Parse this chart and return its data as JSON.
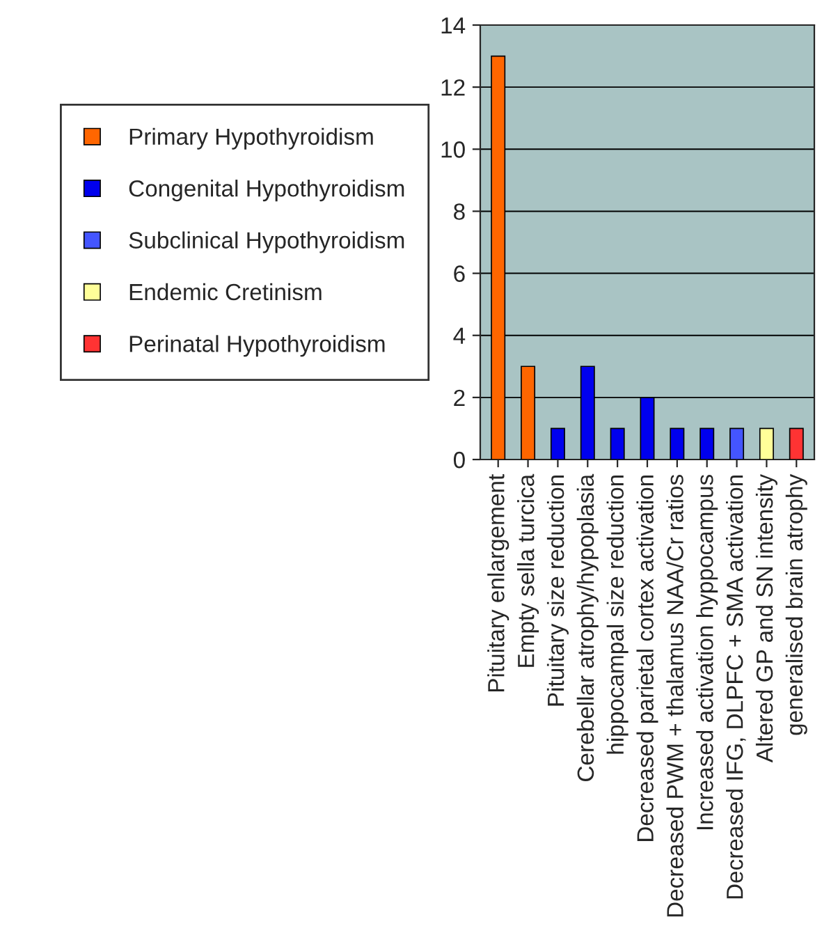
{
  "chart_data": {
    "type": "bar",
    "categories": [
      "Pituitary enlargement",
      "Empty sella turcica",
      "Pituitary size reduction",
      "Cerebellar atrophy/hypoplasia",
      "hippocampal size reduction",
      "Decreased parietal cortex activation",
      "Decreased PWM + thalamus NAA/Cr ratios",
      "Increased activation hyppocampus",
      "Decreased IFG, DLPFC + SMA activation",
      "Altered GP and SN intensity",
      "generalised brain atrophy"
    ],
    "series": [
      {
        "name": "Primary Hypothyroidism",
        "color": "#ff6600",
        "values": [
          13,
          3,
          null,
          null,
          null,
          null,
          null,
          null,
          null,
          null,
          null
        ]
      },
      {
        "name": "Congenital Hypothyroidism",
        "color": "#0000ee",
        "values": [
          null,
          null,
          1,
          3,
          1,
          2,
          1,
          1,
          null,
          null,
          null
        ]
      },
      {
        "name": "Subclinical Hypothyroidism",
        "color": "#4455ff",
        "values": [
          null,
          null,
          null,
          null,
          null,
          null,
          null,
          null,
          1,
          null,
          null
        ]
      },
      {
        "name": "Endemic Cretinism",
        "color": "#ffff99",
        "values": [
          null,
          null,
          null,
          null,
          null,
          null,
          null,
          null,
          null,
          1,
          null
        ]
      },
      {
        "name": "Perinatal Hypothyroidism",
        "color": "#ff3333",
        "values": [
          null,
          null,
          null,
          null,
          null,
          null,
          null,
          null,
          null,
          null,
          1
        ]
      }
    ],
    "ylim": [
      0,
      14
    ],
    "yticks": [
      0,
      2,
      4,
      6,
      8,
      10,
      12,
      14
    ],
    "grid": "y",
    "legend": "left"
  }
}
